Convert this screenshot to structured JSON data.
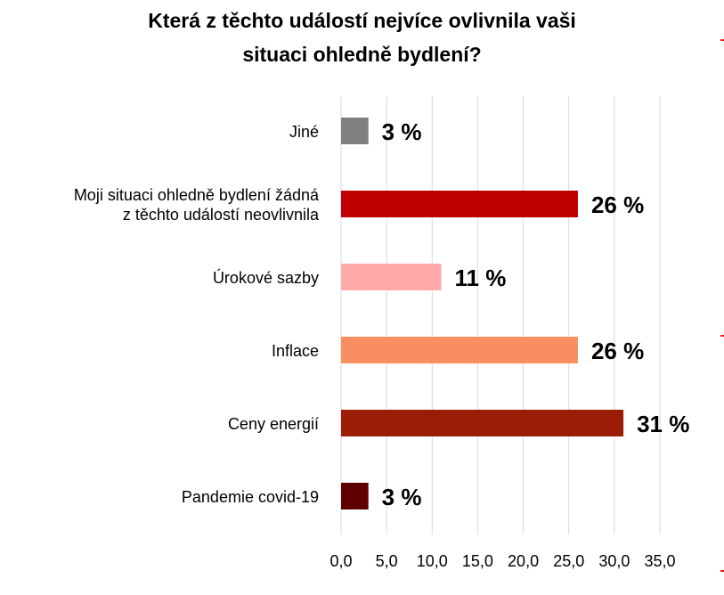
{
  "chart_data": {
    "type": "bar",
    "orientation": "horizontal",
    "title_lines": [
      "Která z těchto událostí nejvíce ovlivnila vaši",
      "situaci ohledně bydlení?"
    ],
    "categories": [
      [
        "Jiné"
      ],
      [
        "Moji situaci ohledně bydlení žádná",
        "z těchto událostí neovlivnila"
      ],
      [
        "Úrokové sazby"
      ],
      [
        "Inflace"
      ],
      [
        "Ceny energií"
      ],
      [
        "Pandemie covid-19"
      ]
    ],
    "values": [
      3,
      26,
      11,
      26,
      31,
      3
    ],
    "value_labels": [
      "3 %",
      "26 %",
      "11 %",
      "26 %",
      "31 %",
      "3 %"
    ],
    "colors": [
      "#808080",
      "#c00000",
      "#ffaaaa",
      "#f98e63",
      "#9b1d05",
      "#5e0000"
    ],
    "xlim": [
      0,
      35
    ],
    "x_ticks": [
      "0,0",
      "5,0",
      "10,0",
      "15,0",
      "20,0",
      "25,0",
      "30,0",
      "35,0"
    ],
    "grid": true,
    "legend": "none"
  }
}
